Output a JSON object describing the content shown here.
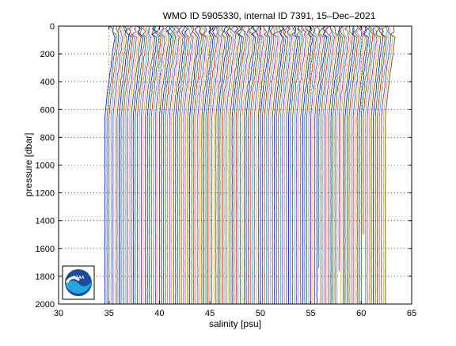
{
  "chart_data": {
    "type": "line",
    "title": "WMO ID 5905330, internal ID 7391, 15–Dec–2021",
    "xlabel": "salinity [psu]",
    "ylabel": "pressure [dbar]",
    "xlim": [
      30,
      65
    ],
    "ylim": [
      0,
      2000
    ],
    "y_reversed": true,
    "xticks": [
      30,
      35,
      40,
      45,
      50,
      55,
      60,
      65
    ],
    "yticks": [
      0,
      200,
      400,
      600,
      800,
      1000,
      1200,
      1400,
      1600,
      1800,
      2000
    ],
    "grid": "dotted",
    "legend": "none",
    "profile_offset_psu": 0.2,
    "profile_base_psu": 34.6,
    "profile_count": 140,
    "series_colors": [
      "#0000ff",
      "#008000",
      "#ff0000",
      "#00bfbf",
      "#bf00bf",
      "#bfbf00",
      "#404040"
    ],
    "logo": {
      "name": "noaa-logo",
      "text": "NOAA"
    }
  }
}
